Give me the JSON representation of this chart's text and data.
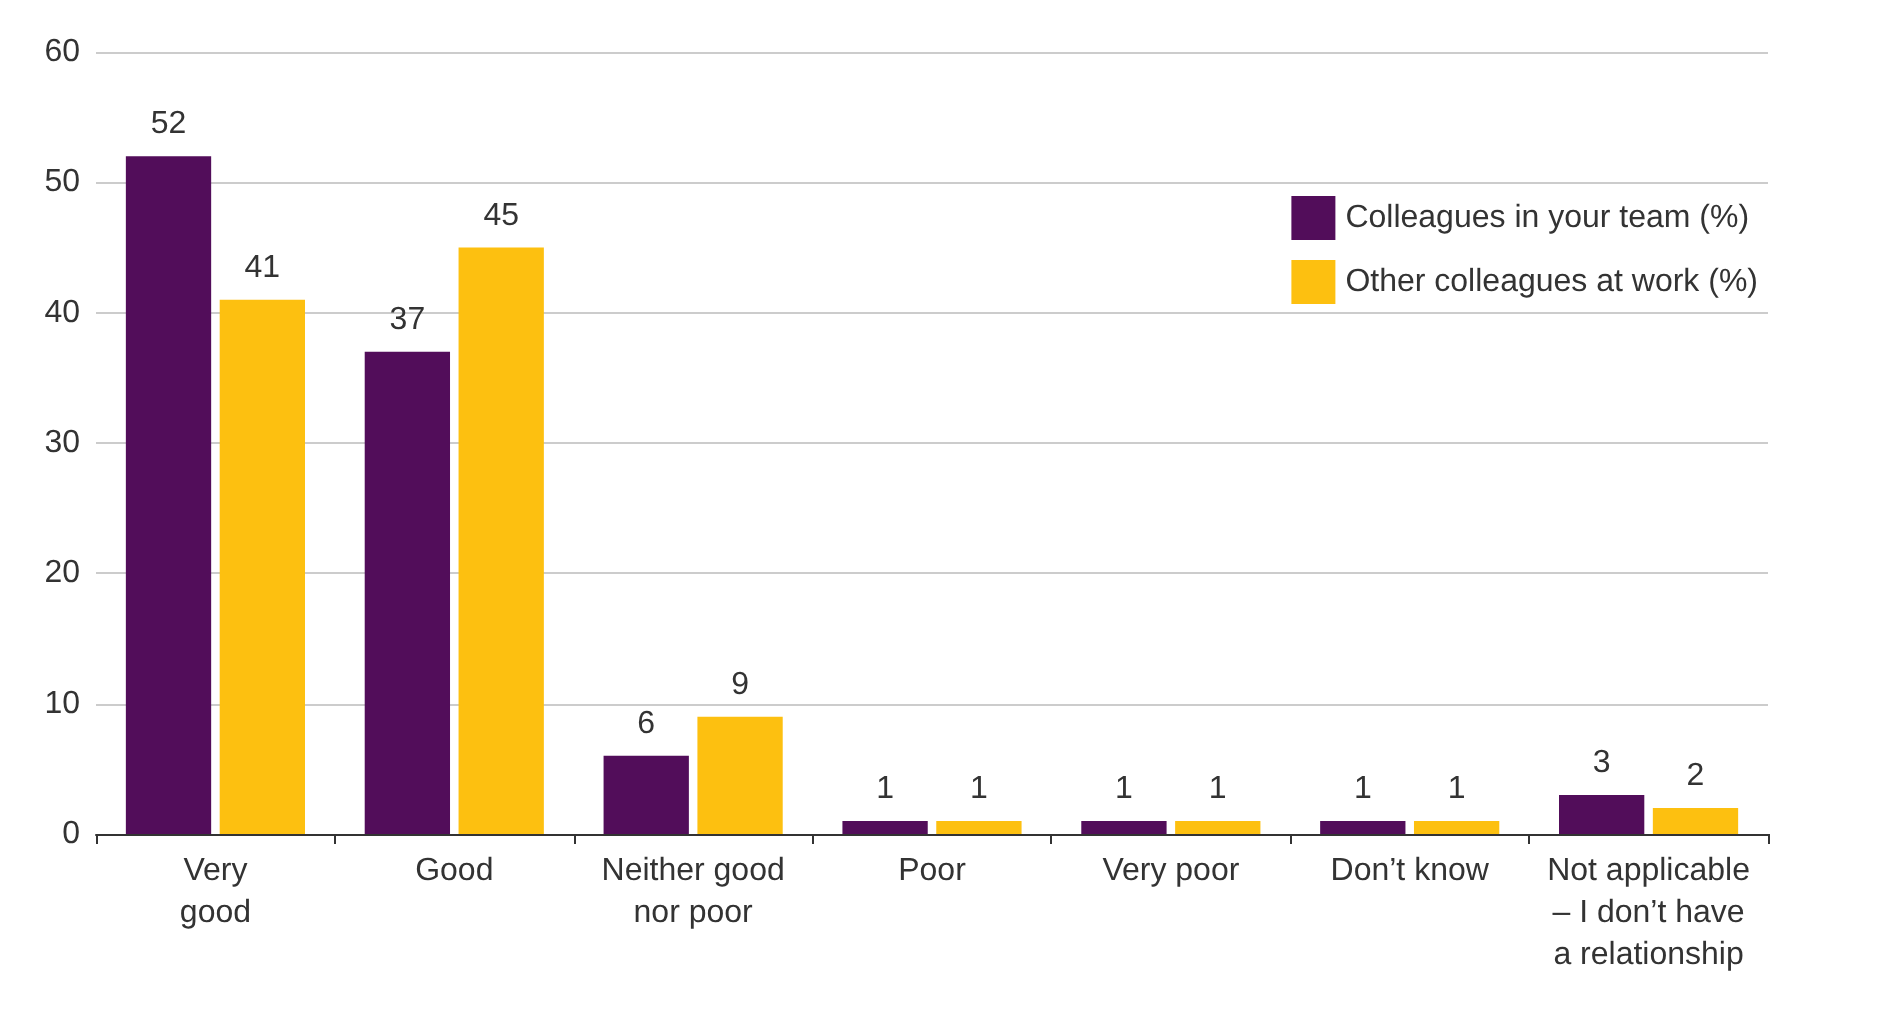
{
  "chart_data": {
    "type": "bar",
    "categories": [
      "Very\ngood",
      "Good",
      "Neither good\nnor poor",
      "Poor",
      "Very poor",
      "Don’t know",
      "Not applicable\n– I don’t have\na relationship"
    ],
    "series": [
      {
        "name": "Colleagues in your team (%)",
        "color": "#520d5a",
        "values": [
          52,
          37,
          6,
          1,
          1,
          1,
          3
        ]
      },
      {
        "name": "Other colleagues at work (%)",
        "color": "#fdc010",
        "values": [
          41,
          45,
          9,
          1,
          1,
          1,
          2
        ]
      }
    ],
    "ylim": [
      0,
      60
    ],
    "yticks": [
      0,
      10,
      20,
      30,
      40,
      50,
      60
    ],
    "grid": "y",
    "legend": "top right",
    "data_labels": true
  }
}
